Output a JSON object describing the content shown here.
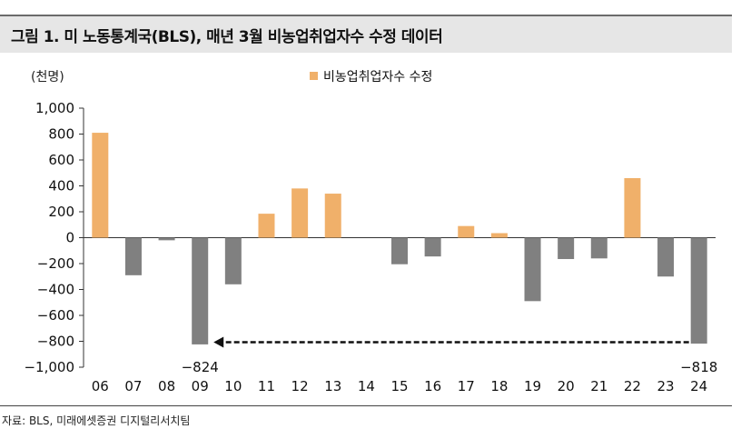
{
  "header": {
    "title": "그림 1. 미 노동통계국(BLS), 매년 3월 비농업취업자수 수정 데이터"
  },
  "unit": "(천명)",
  "source": "자료: BLS, 미래에셋증권 디지털리서치팀",
  "colors": {
    "positive": "#f0b06a",
    "negative": "#808080",
    "axis": "#333333",
    "arrow": "#111111"
  },
  "chart_data": {
    "type": "bar",
    "categories": [
      "06",
      "07",
      "08",
      "09",
      "10",
      "11",
      "12",
      "13",
      "14",
      "15",
      "16",
      "17",
      "18",
      "19",
      "20",
      "21",
      "22",
      "23",
      "24"
    ],
    "series": [
      {
        "name": "비농업취업자수 수정",
        "values": [
          810,
          -290,
          -20,
          -824,
          -360,
          185,
          380,
          340,
          0,
          -205,
          -145,
          90,
          35,
          -490,
          -165,
          -160,
          460,
          -300,
          -818
        ]
      }
    ],
    "ylim": [
      -1000,
      1000
    ],
    "yticks": [
      1000,
      800,
      600,
      400,
      200,
      0,
      -200,
      -400,
      -600,
      -800,
      -1000
    ],
    "ytick_labels": [
      "1,000",
      "800",
      "600",
      "400",
      "200",
      "0",
      "−200",
      "−400",
      "−600",
      "−800",
      "−1,000"
    ],
    "legend": {
      "label": "비농업취업자수 수정",
      "position": "top-center"
    },
    "annotations": [
      {
        "text": "−824",
        "category": "09"
      },
      {
        "text": "−818",
        "category": "24"
      }
    ],
    "arrow": {
      "from": "24",
      "to": "09",
      "value": -800,
      "style": "dashed"
    }
  }
}
